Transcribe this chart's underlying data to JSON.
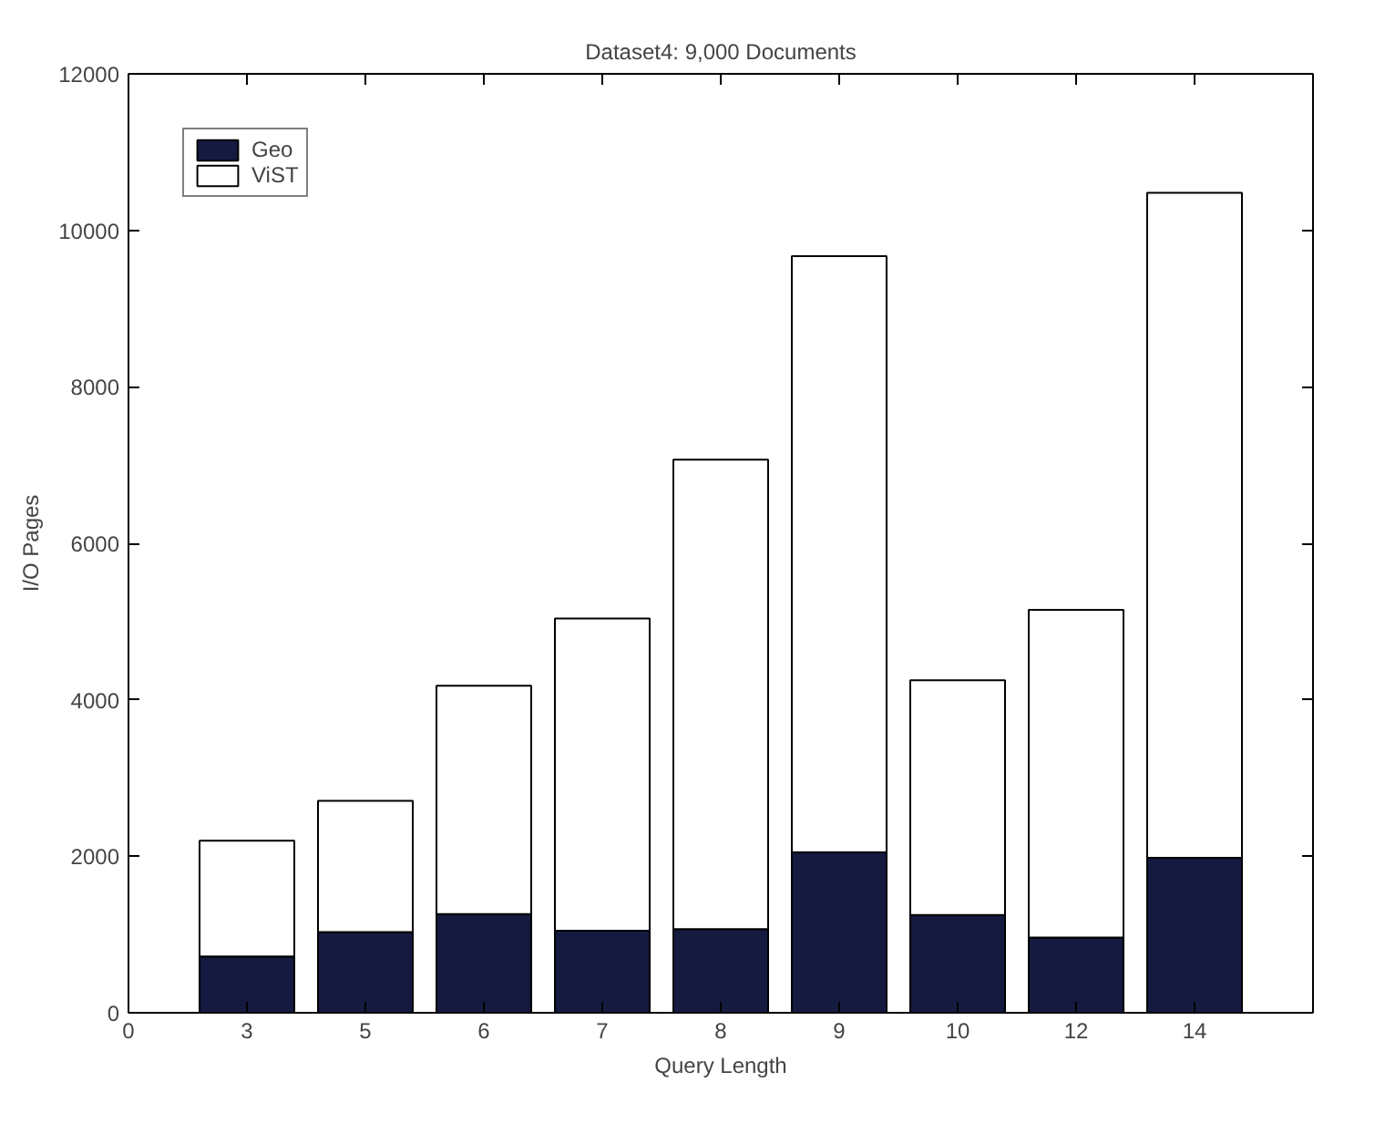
{
  "chart_data": {
    "type": "bar",
    "title": "Dataset4: 9,000 Documents",
    "xlabel": "Query Length",
    "ylabel": "I/O Pages",
    "categories": [
      "3",
      "5",
      "6",
      "7",
      "8",
      "9",
      "10",
      "12",
      "14"
    ],
    "annotations": [
      "0"
    ],
    "ylim": [
      0,
      12000
    ],
    "yticks": [
      0,
      2000,
      4000,
      6000,
      8000,
      10000,
      12000
    ],
    "stacked": true,
    "grid": false,
    "legend": "top left",
    "series": [
      {
        "name": "Geo",
        "color": "#141a40",
        "values": [
          720,
          1030,
          1260,
          1050,
          1070,
          2050,
          1250,
          960,
          1980
        ]
      },
      {
        "name": "ViST",
        "color": "#ffffff",
        "values": [
          1480,
          1680,
          2920,
          3990,
          6000,
          7620,
          3000,
          4190,
          8500
        ]
      }
    ]
  }
}
